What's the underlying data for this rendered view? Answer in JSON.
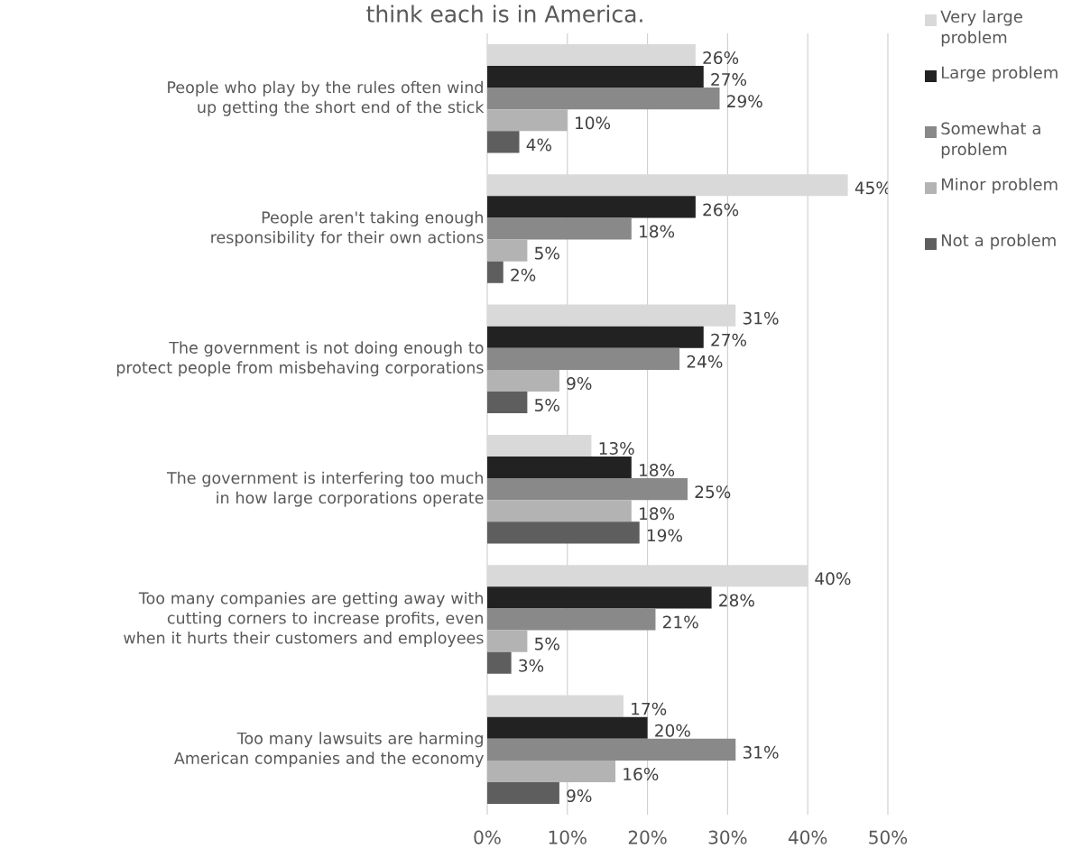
{
  "chart_data": {
    "type": "bar",
    "orientation": "horizontal",
    "title": "think each is in America.",
    "categories": [
      "People who play by the rules often wind up getting the short end of the stick",
      "People aren't taking enough responsibility for their own actions",
      "The government is not doing enough to protect people from misbehaving corporations",
      "The government is interfering too much in how large corporations operate",
      "Too many companies are getting away with cutting corners to increase profits, even when it hurts their customers and employees",
      "Too many lawsuits are harming American companies and the economy"
    ],
    "series": [
      {
        "name": "Very large problem",
        "color": "#d9d9d9",
        "values": [
          26,
          45,
          31,
          13,
          40,
          17
        ],
        "value_labels": [
          "26%",
          "45%",
          "31%",
          "13%",
          "40%",
          "17%"
        ]
      },
      {
        "name": "Large problem",
        "color": "#222222",
        "values": [
          27,
          26,
          27,
          18,
          28,
          20
        ],
        "value_labels": [
          "27%",
          "26%",
          "27%",
          "18%",
          "28%",
          "20%"
        ]
      },
      {
        "name": "Somewhat a problem",
        "color": "#898989",
        "values": [
          29,
          18,
          24,
          25,
          21,
          31
        ],
        "value_labels": [
          "29%",
          "18%",
          "24%",
          "25%",
          "21%",
          "31%"
        ]
      },
      {
        "name": "Minor problem",
        "color": "#b3b3b3",
        "values": [
          10,
          5,
          9,
          18,
          5,
          16
        ],
        "value_labels": [
          "10%",
          "5%",
          "9%",
          "18%",
          "5%",
          "16%"
        ]
      },
      {
        "name": "Not a problem",
        "color": "#5e5e5e",
        "values": [
          4,
          2,
          5,
          19,
          3,
          9
        ],
        "value_labels": [
          "4%",
          "2%",
          "5%",
          "19%",
          "3%",
          "9%"
        ]
      }
    ],
    "xlim": [
      0,
      50
    ],
    "xticks": [
      {
        "value": 0,
        "label": "0%"
      },
      {
        "value": 10,
        "label": "10%"
      },
      {
        "value": 20,
        "label": "20%"
      },
      {
        "value": 30,
        "label": "30%"
      },
      {
        "value": 40,
        "label": "40%"
      },
      {
        "value": 50,
        "label": "50%"
      }
    ],
    "grid": "x",
    "legend": "right"
  }
}
